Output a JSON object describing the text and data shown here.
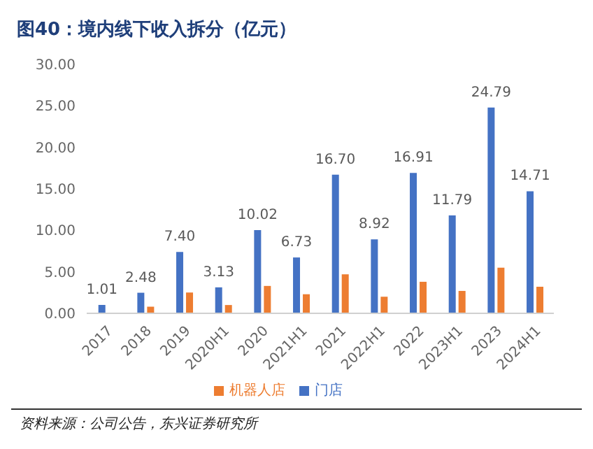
{
  "chart_data": {
    "type": "bar",
    "title": "图40：境内线下收入拆分（亿元）",
    "annotations": [
      "资料来源：公司公告，东兴证券研究所"
    ],
    "categories": [
      "2017",
      "2018",
      "2019",
      "2020H1",
      "2020",
      "2021H1",
      "2021",
      "2022H1",
      "2022",
      "2023H1",
      "2023",
      "2024H1"
    ],
    "series": [
      {
        "name": "门店",
        "color": "#4472c4",
        "values": [
          1.01,
          2.48,
          7.4,
          3.13,
          10.02,
          6.73,
          16.7,
          8.92,
          16.91,
          11.79,
          24.79,
          14.71
        ],
        "value_labels": [
          "1.01",
          "2.48",
          "7.40",
          "3.13",
          "10.02",
          "6.73",
          "16.70",
          "8.92",
          "16.91",
          "11.79",
          "24.79",
          "14.71"
        ]
      },
      {
        "name": "机器人店",
        "color": "#ed7d31",
        "values": [
          null,
          0.8,
          2.5,
          1.0,
          3.3,
          2.3,
          4.7,
          2.0,
          3.8,
          2.7,
          5.5,
          3.2
        ]
      }
    ],
    "ylim": [
      0,
      30
    ],
    "yticks": [
      {
        "value": 0,
        "label": "0.00"
      },
      {
        "value": 5,
        "label": "5.00"
      },
      {
        "value": 10,
        "label": "10.00"
      },
      {
        "value": 15,
        "label": "15.00"
      },
      {
        "value": 20,
        "label": "20.00"
      },
      {
        "value": 25,
        "label": "25.00"
      },
      {
        "value": 30,
        "label": "30.00"
      }
    ],
    "grid": false,
    "legend": "bottom"
  }
}
